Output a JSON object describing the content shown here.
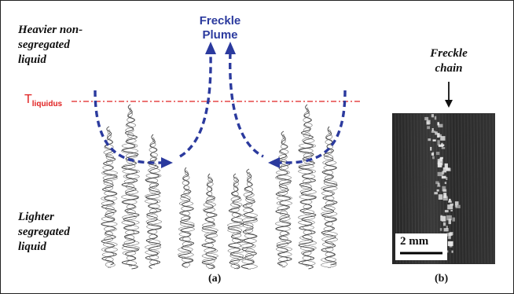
{
  "panel_a": {
    "heavier_line1": "Heavier non-",
    "heavier_line2": "segregated",
    "heavier_line3": "liquid",
    "lighter_line1": "Lighter",
    "lighter_line2": "segregated",
    "lighter_line3": "liquid",
    "plume_line1": "Freckle",
    "plume_line2": "Plume",
    "t_main": "T",
    "t_sub": "liquidus",
    "caption": "(a)"
  },
  "panel_b": {
    "chain_line1": "Freckle",
    "chain_line2": "chain",
    "scale_label": "2 mm",
    "caption": "(b)"
  },
  "colors": {
    "arrow": "#2b3a9e",
    "liquidus": "#e02020",
    "dendrite": "#444444"
  }
}
